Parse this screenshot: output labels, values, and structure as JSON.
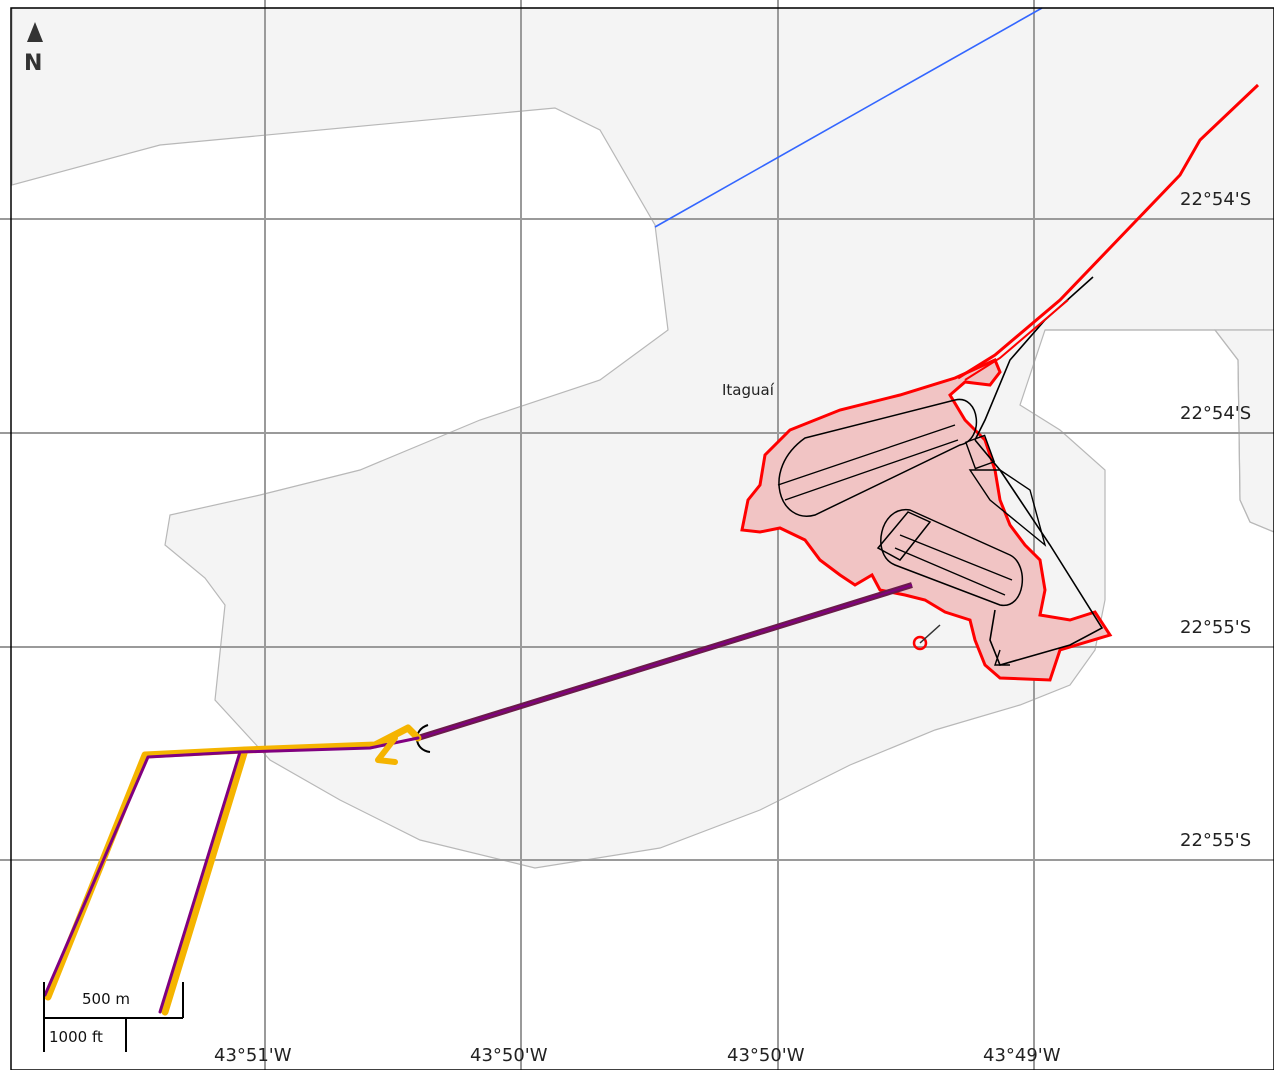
{
  "map": {
    "place_label": "Itaguaí",
    "north_label": "N",
    "north_icon": "north-arrow-icon",
    "latitude_labels": [
      "22°54'S",
      "22°54'S",
      "22°55'S",
      "22°55'S"
    ],
    "longitude_labels": [
      "43°51'W",
      "43°50'W",
      "43°50'W",
      "43°49'W"
    ],
    "scale": {
      "metric_label": "500 m",
      "imperial_label": "1000 ft"
    },
    "colors": {
      "land": "#f4f4f4",
      "coast": "#b8b8b8",
      "water": "#ffffff",
      "area_fill": "#f1c4c4",
      "area_outline": "#ff0000",
      "railway": "#000000",
      "pipeline_purple": "#800080",
      "pipeline_dark": "#6b1a4a",
      "pipeline_yellow": "#f5b400",
      "blue_line": "#3366ff",
      "grid": "#9a9a9a"
    }
  }
}
